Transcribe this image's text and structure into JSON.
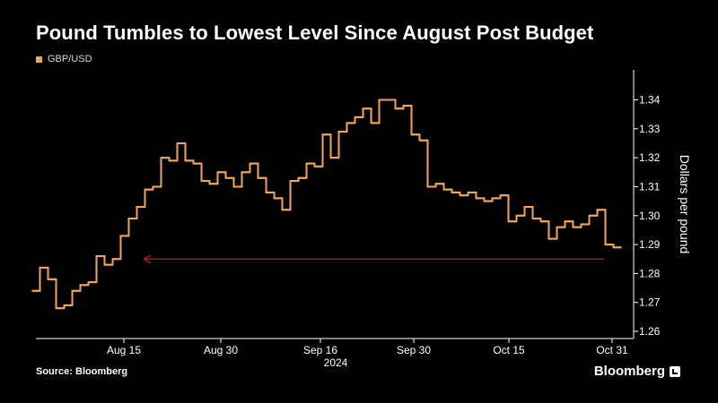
{
  "title": "Pound Tumbles to Lowest Level Since August Post Budget",
  "source": "Source: Bloomberg",
  "brand": "Bloomberg",
  "chart_data": {
    "type": "line",
    "legend": [
      "GBP/USD"
    ],
    "colors": {
      "series": "#f2a65a",
      "annotation": "#c8102e",
      "axis": "#ffffff",
      "background": "#000000"
    },
    "ylabel": "Dollars per pound",
    "ylim": [
      1.26,
      1.345
    ],
    "y_ticks": [
      "1.26",
      "1.27",
      "1.28",
      "1.29",
      "1.30",
      "1.31",
      "1.32",
      "1.33",
      "1.34"
    ],
    "x_ticks": [
      "Aug 15",
      "Aug 30",
      "Sep 16",
      "Sep 30",
      "Oct 15",
      "Oct 31"
    ],
    "x_year_label": "2024",
    "grid": false,
    "legend_position": "top-left",
    "annotation": "horizontal arrow at 1.285 from Oct 31 back to Aug 15",
    "series": [
      {
        "name": "GBP/USD",
        "values": [
          1.274,
          1.282,
          1.278,
          1.268,
          1.269,
          1.274,
          1.276,
          1.277,
          1.286,
          1.283,
          1.285,
          1.293,
          1.299,
          1.303,
          1.309,
          1.31,
          1.32,
          1.319,
          1.325,
          1.319,
          1.318,
          1.312,
          1.311,
          1.315,
          1.313,
          1.31,
          1.315,
          1.318,
          1.313,
          1.308,
          1.306,
          1.302,
          1.312,
          1.313,
          1.318,
          1.317,
          1.328,
          1.32,
          1.329,
          1.332,
          1.334,
          1.337,
          1.332,
          1.34,
          1.34,
          1.337,
          1.338,
          1.328,
          1.326,
          1.31,
          1.311,
          1.309,
          1.308,
          1.307,
          1.308,
          1.306,
          1.305,
          1.306,
          1.307,
          1.298,
          1.3,
          1.303,
          1.299,
          1.298,
          1.292,
          1.296,
          1.298,
          1.296,
          1.297,
          1.3,
          1.302,
          1.29,
          1.289
        ]
      }
    ]
  }
}
